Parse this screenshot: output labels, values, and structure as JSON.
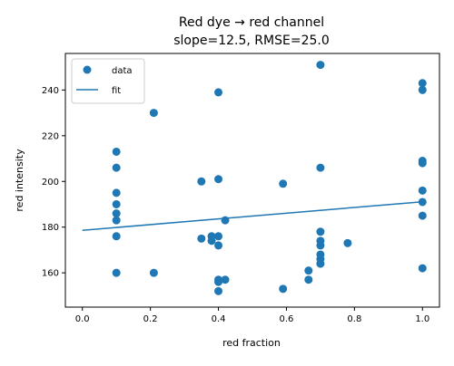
{
  "chart_data": {
    "type": "scatter",
    "title_line1": "Red dye → red channel",
    "title_line2": "slope=12.5, RMSE=25.0",
    "xlabel": "red fraction",
    "ylabel": "red intensity",
    "xlim": [
      -0.05,
      1.05
    ],
    "ylim": [
      145,
      256
    ],
    "xticks": [
      0.0,
      0.2,
      0.4,
      0.6,
      0.8,
      1.0
    ],
    "xtick_labels": [
      "0.0",
      "0.2",
      "0.4",
      "0.6",
      "0.8",
      "1.0"
    ],
    "yticks": [
      160,
      180,
      200,
      220,
      240
    ],
    "ytick_labels": [
      "160",
      "180",
      "200",
      "220",
      "240"
    ],
    "grid": false,
    "legend_position": "top-left",
    "series": [
      {
        "name": "data",
        "kind": "scatter",
        "color": "#1f77b4",
        "points": [
          {
            "x": 0.1,
            "y": 213
          },
          {
            "x": 0.1,
            "y": 206
          },
          {
            "x": 0.1,
            "y": 195
          },
          {
            "x": 0.1,
            "y": 190
          },
          {
            "x": 0.1,
            "y": 186
          },
          {
            "x": 0.1,
            "y": 183
          },
          {
            "x": 0.1,
            "y": 176
          },
          {
            "x": 0.1,
            "y": 160
          },
          {
            "x": 0.21,
            "y": 230
          },
          {
            "x": 0.21,
            "y": 160
          },
          {
            "x": 0.35,
            "y": 200
          },
          {
            "x": 0.35,
            "y": 175
          },
          {
            "x": 0.38,
            "y": 176
          },
          {
            "x": 0.38,
            "y": 174
          },
          {
            "x": 0.4,
            "y": 239
          },
          {
            "x": 0.4,
            "y": 201
          },
          {
            "x": 0.4,
            "y": 176
          },
          {
            "x": 0.4,
            "y": 172
          },
          {
            "x": 0.4,
            "y": 157
          },
          {
            "x": 0.4,
            "y": 156
          },
          {
            "x": 0.4,
            "y": 152
          },
          {
            "x": 0.42,
            "y": 183
          },
          {
            "x": 0.42,
            "y": 157
          },
          {
            "x": 0.59,
            "y": 199
          },
          {
            "x": 0.59,
            "y": 153
          },
          {
            "x": 0.665,
            "y": 161
          },
          {
            "x": 0.665,
            "y": 157
          },
          {
            "x": 0.7,
            "y": 251
          },
          {
            "x": 0.7,
            "y": 206
          },
          {
            "x": 0.7,
            "y": 178
          },
          {
            "x": 0.7,
            "y": 174
          },
          {
            "x": 0.7,
            "y": 172
          },
          {
            "x": 0.7,
            "y": 168
          },
          {
            "x": 0.7,
            "y": 166
          },
          {
            "x": 0.7,
            "y": 164
          },
          {
            "x": 0.78,
            "y": 173
          },
          {
            "x": 1.0,
            "y": 243
          },
          {
            "x": 1.0,
            "y": 240
          },
          {
            "x": 1.0,
            "y": 209
          },
          {
            "x": 1.0,
            "y": 208
          },
          {
            "x": 1.0,
            "y": 196
          },
          {
            "x": 1.0,
            "y": 191
          },
          {
            "x": 1.0,
            "y": 185
          },
          {
            "x": 1.0,
            "y": 162
          }
        ]
      },
      {
        "name": "fit",
        "kind": "line",
        "color": "#1f77b4",
        "points": [
          {
            "x": 0.0,
            "y": 178.6
          },
          {
            "x": 1.0,
            "y": 191.1
          }
        ]
      }
    ]
  }
}
